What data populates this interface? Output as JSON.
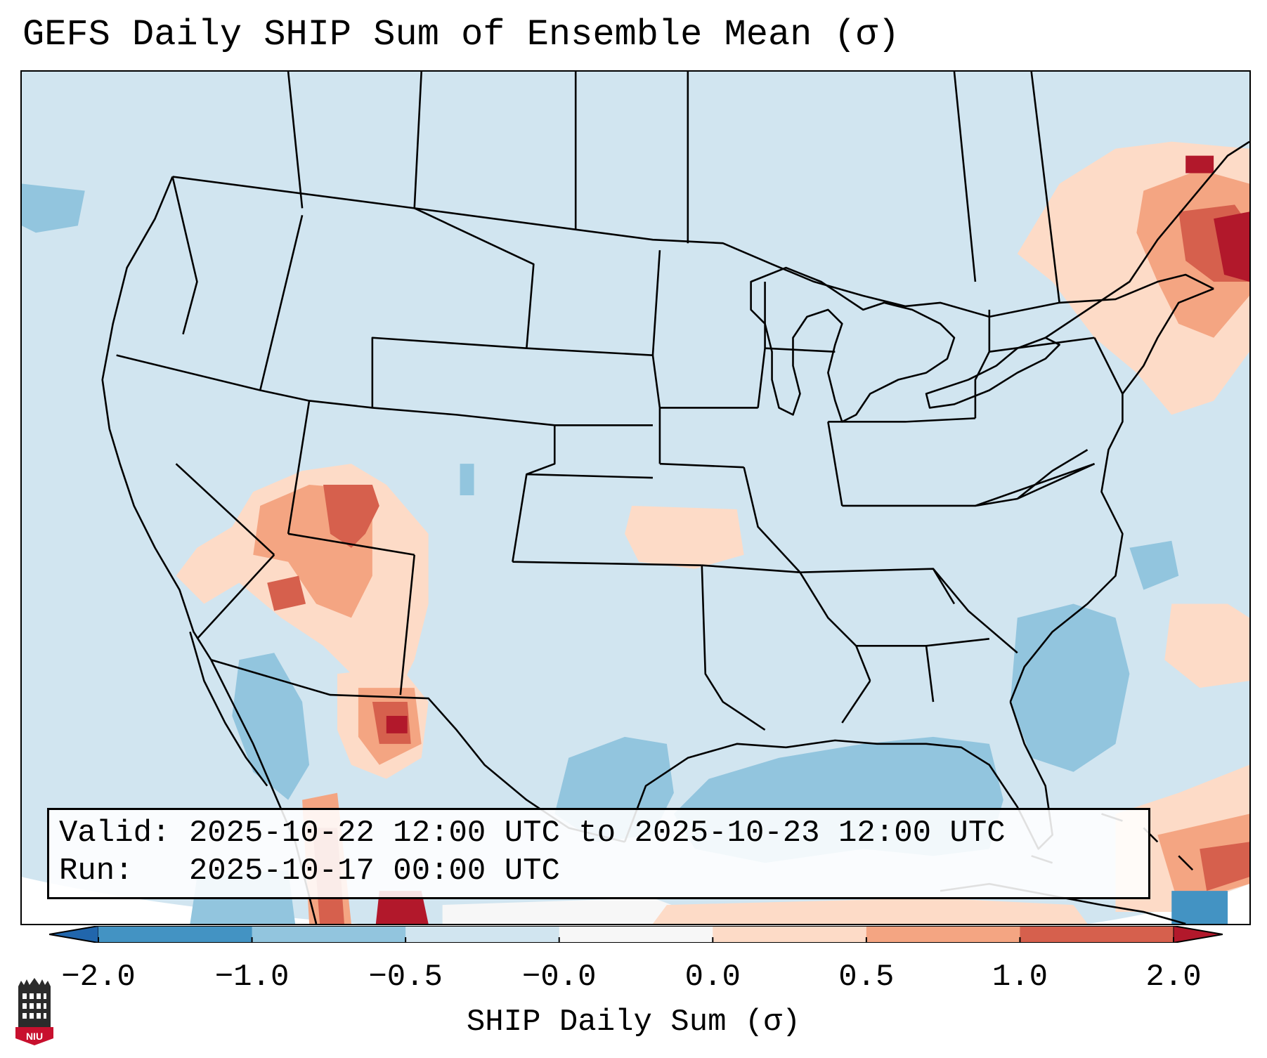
{
  "title": "GEFS Daily SHIP Sum of Ensemble Mean (σ)",
  "valid_label": "Valid:",
  "valid_value": "2025-10-22 12:00 UTC to 2025-10-23 12:00 UTC",
  "run_label": "Run:",
  "run_value": "2025-10-17 00:00 UTC",
  "colorbar": {
    "label": "SHIP Daily Sum (σ)",
    "ticks": [
      "−2.0",
      "−1.0",
      "−0.5",
      "−0.0",
      "0.0",
      "0.5",
      "1.0",
      "2.0"
    ],
    "colors": [
      "#4393c3",
      "#92c5de",
      "#d1e5f0",
      "#f7f7f7",
      "#fddbc7",
      "#f4a582",
      "#d6604d"
    ],
    "under_color": "#2166ac",
    "over_color": "#b2182b"
  },
  "map": {
    "background_anomaly_color": "#d1e5f0",
    "outline_color": "#000000"
  },
  "logo": {
    "text": "NIU"
  }
}
